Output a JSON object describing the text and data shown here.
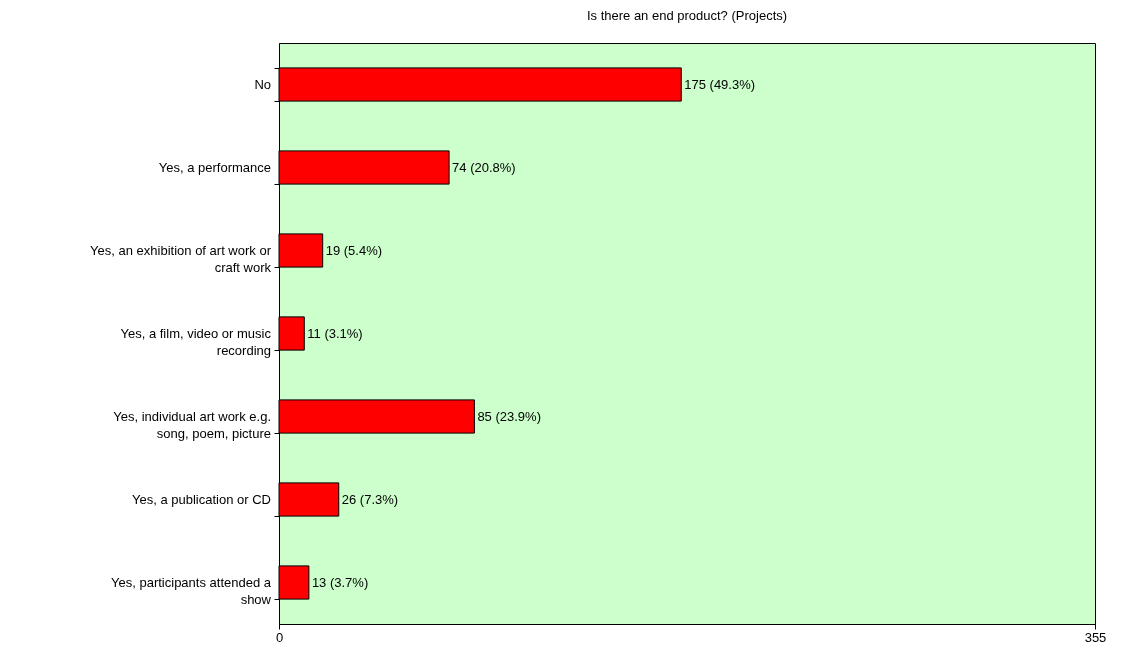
{
  "chart_data": {
    "type": "bar",
    "orientation": "horizontal",
    "title": "Is there an end product? (Projects)",
    "categories": [
      "No",
      "Yes, a performance",
      "Yes, an exhibition of art work or craft work",
      "Yes, a film, video or music recording",
      "Yes, individual art work e.g. song, poem, picture",
      "Yes, a publication or CD",
      "Yes, participants attended a show"
    ],
    "values": [
      175,
      74,
      19,
      11,
      85,
      26,
      13
    ],
    "value_labels": [
      "175  (49.3%)",
      "74  (20.8%)",
      "19  (5.4%)",
      "11  (3.1%)",
      "85  (23.9%)",
      "26  (7.3%)",
      "13  (3.7%)"
    ],
    "color": "#ff0000",
    "xlim": [
      0,
      355
    ],
    "xticks": [
      0,
      355
    ],
    "grid": false
  }
}
